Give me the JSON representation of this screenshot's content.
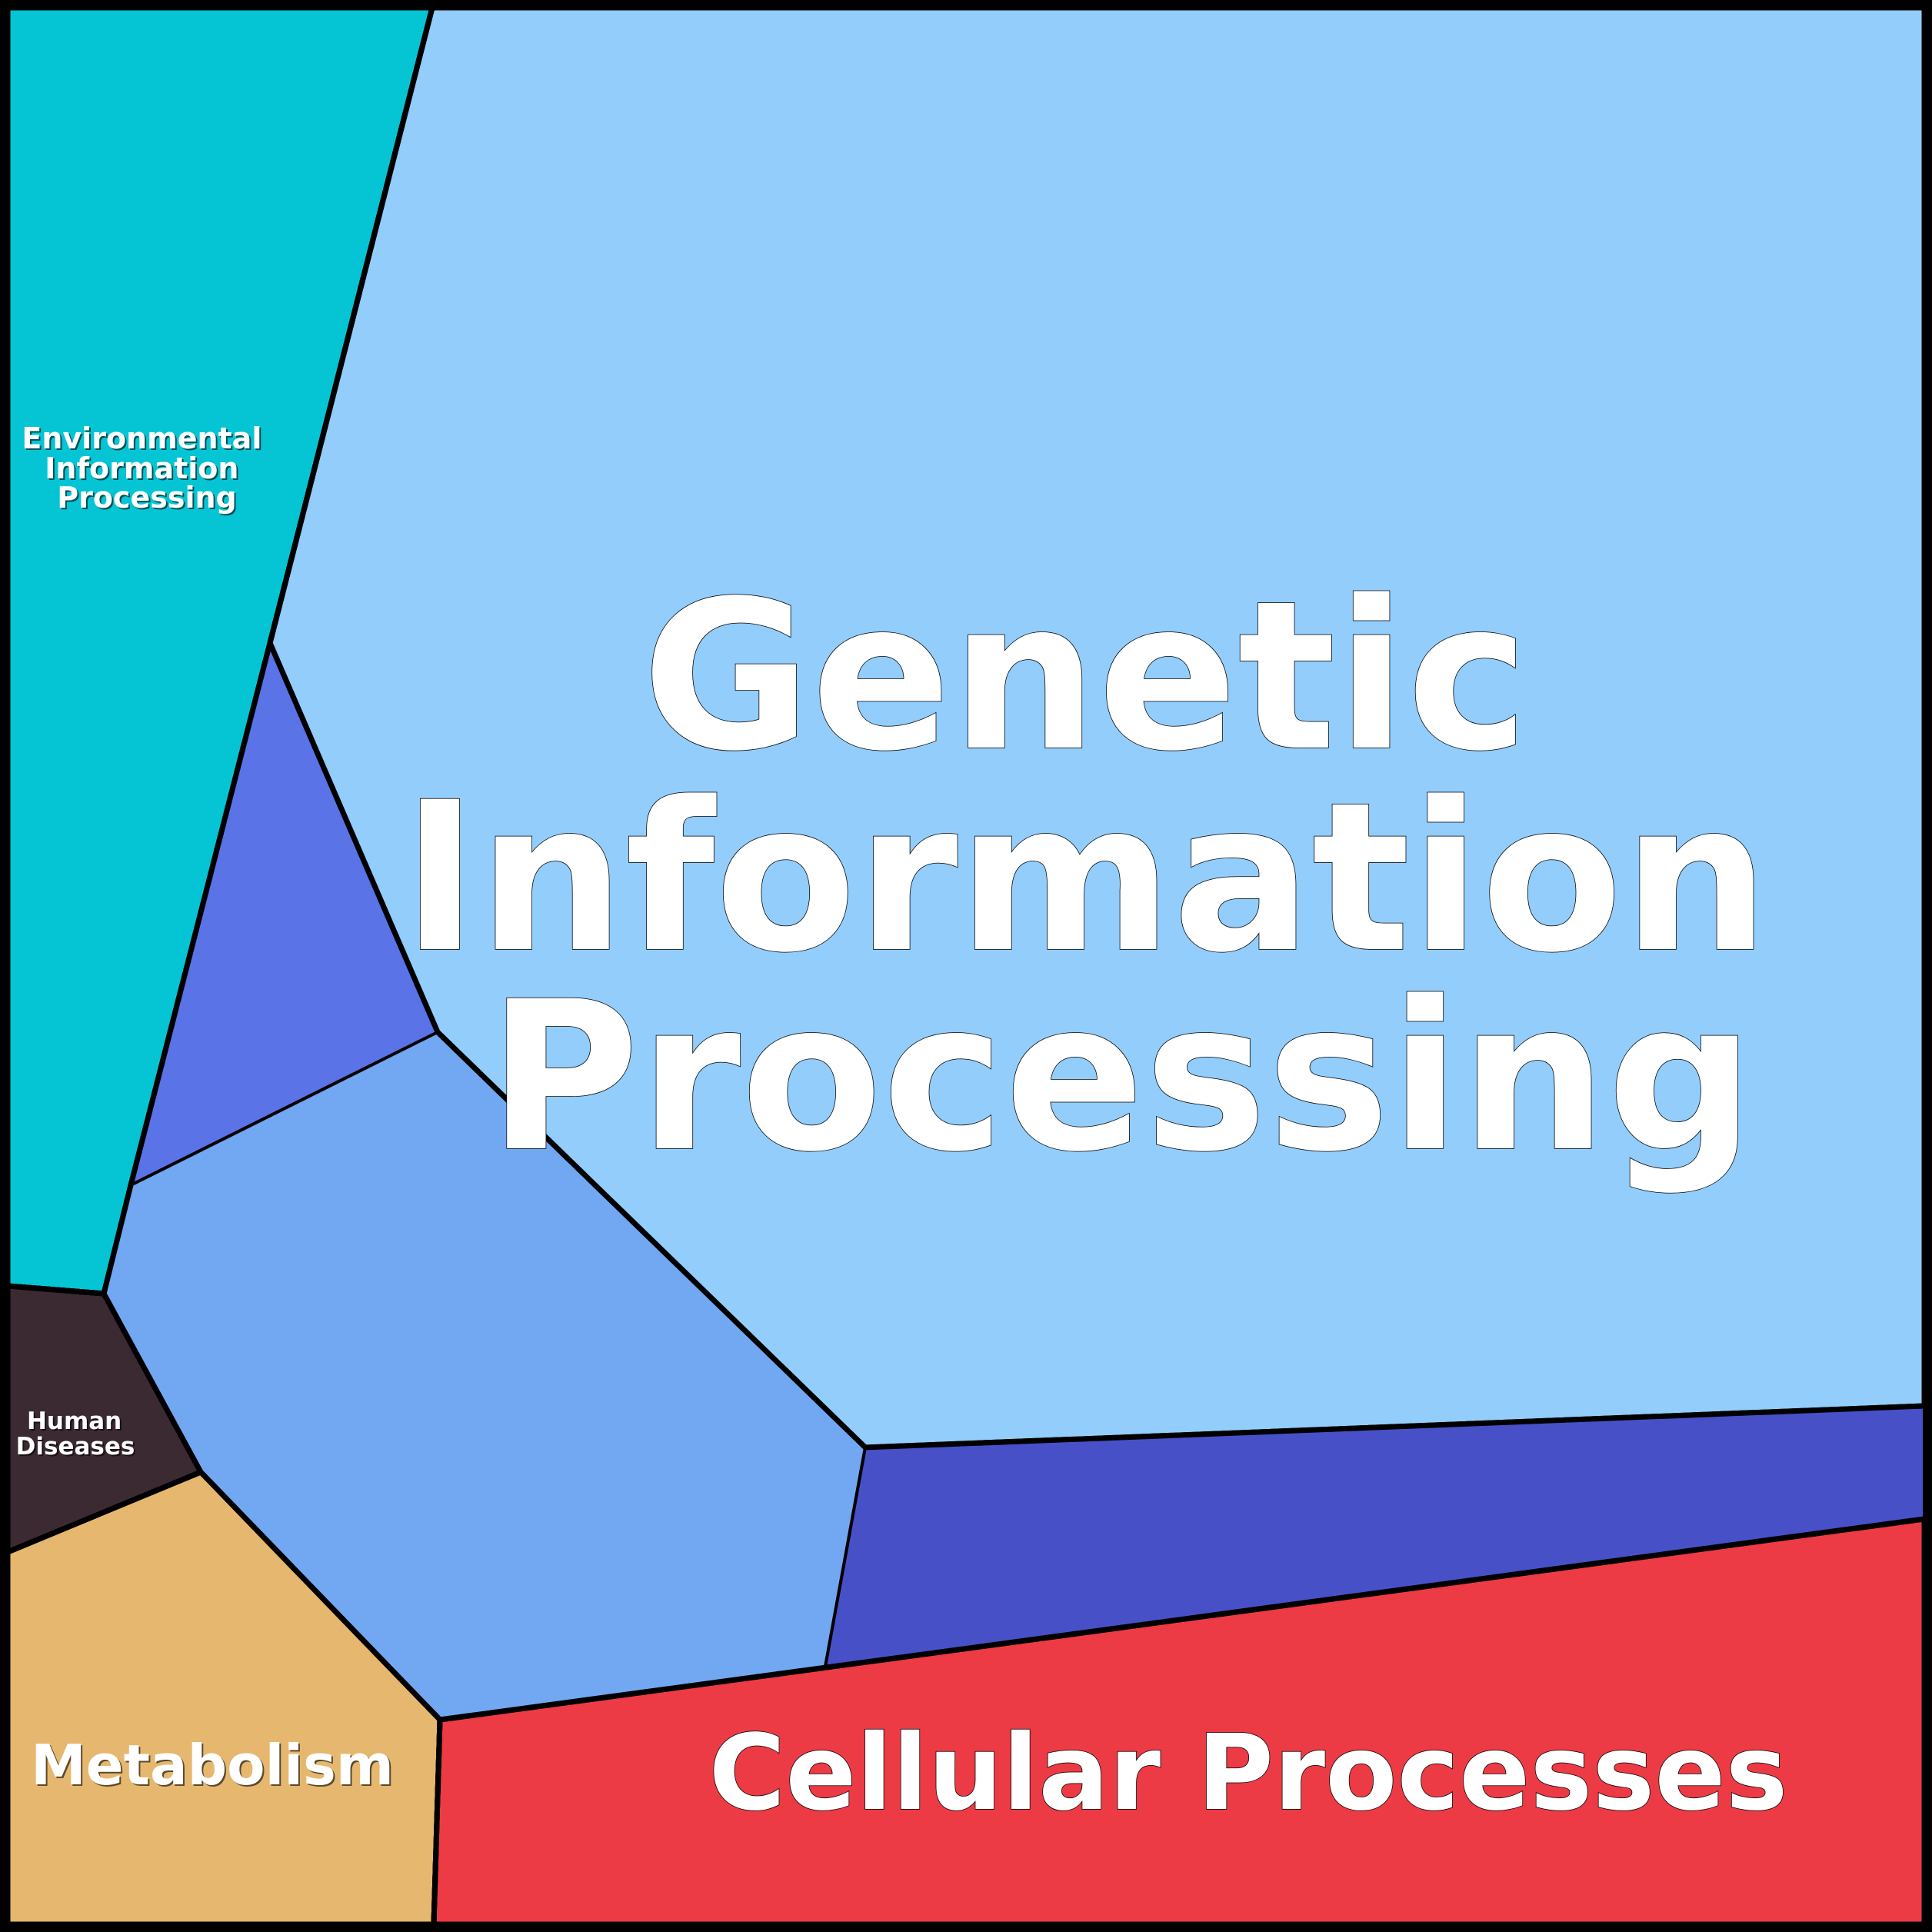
{
  "chart_data": {
    "type": "voronoi-treemap",
    "title": "",
    "cells": [
      {
        "id": "env",
        "label_lines": [
          "Environmental",
          "Information",
          "Processing"
        ],
        "color": "#05C5D5"
      },
      {
        "id": "genetic",
        "label_lines": [
          "Genetic",
          "Information",
          "Processing"
        ],
        "color": "#92CDFC"
      },
      {
        "id": "genetic-sub-a",
        "label_lines": [],
        "color": "#5A73E6"
      },
      {
        "id": "genetic-sub-b",
        "label_lines": [],
        "color": "#72A8F2"
      },
      {
        "id": "genetic-sub-c",
        "label_lines": [],
        "color": "#4850C8"
      },
      {
        "id": "human",
        "label_lines": [
          "Human",
          "Diseases"
        ],
        "color": "#3C2A33"
      },
      {
        "id": "metabolism",
        "label_lines": [
          "Metabolism"
        ],
        "color": "#E6B76E"
      },
      {
        "id": "cellular",
        "label_lines": [
          "Cellular Processes"
        ],
        "color": "#EC3B44"
      }
    ],
    "border_color": "#000000"
  }
}
